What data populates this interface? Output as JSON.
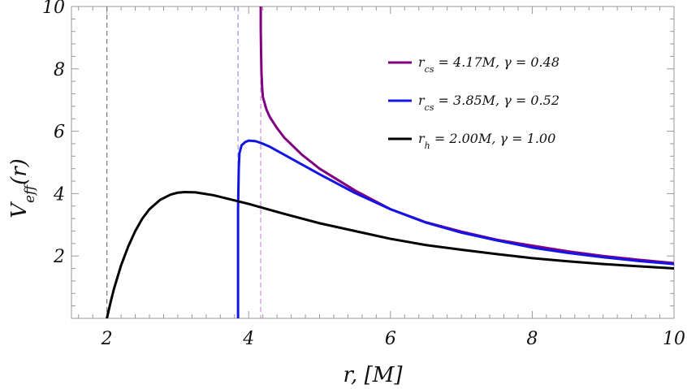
{
  "chart_data": {
    "type": "line",
    "xlabel": "r, [M]",
    "ylabel": "V_eff(r)",
    "xlim": [
      1.5,
      10
    ],
    "ylim": [
      0,
      10
    ],
    "x_ticks": [
      2,
      4,
      6,
      8,
      10
    ],
    "y_ticks": [
      2,
      4,
      6,
      8,
      10
    ],
    "grid": false,
    "legend_position": "top-right",
    "vertical_lines": [
      {
        "x": 2.0,
        "color": "#777777"
      },
      {
        "x": 3.85,
        "color": "#9a8fe0"
      },
      {
        "x": 4.17,
        "color": "#c890d8"
      }
    ],
    "series": [
      {
        "name": "r_cs = 4.17M, γ = 0.48",
        "legend_main": "r",
        "legend_sub": "cs",
        "legend_rest": " = 4.17M, γ = 0.48",
        "color": "#800080",
        "points": [
          [
            4.17,
            10.0
          ],
          [
            4.17,
            9.3
          ],
          [
            4.175,
            8.5
          ],
          [
            4.18,
            7.9
          ],
          [
            4.19,
            7.4
          ],
          [
            4.2,
            7.1
          ],
          [
            4.25,
            6.7
          ],
          [
            4.3,
            6.45
          ],
          [
            4.4,
            6.1
          ],
          [
            4.5,
            5.8
          ],
          [
            4.75,
            5.25
          ],
          [
            5.0,
            4.8
          ],
          [
            5.5,
            4.1
          ],
          [
            6.0,
            3.5
          ],
          [
            6.5,
            3.08
          ],
          [
            7.0,
            2.78
          ],
          [
            7.5,
            2.52
          ],
          [
            8.0,
            2.33
          ],
          [
            8.5,
            2.15
          ],
          [
            9.0,
            2.0
          ],
          [
            9.5,
            1.88
          ],
          [
            10.0,
            1.77
          ]
        ]
      },
      {
        "name": "r_cs = 3.85M, γ = 0.52",
        "legend_main": "r",
        "legend_sub": "cs",
        "legend_rest": " = 3.85M, γ = 0.52",
        "color": "#1414e6",
        "points": [
          [
            3.85,
            0.0
          ],
          [
            3.85,
            1.5
          ],
          [
            3.85,
            3.5
          ],
          [
            3.86,
            4.8
          ],
          [
            3.87,
            5.3
          ],
          [
            3.9,
            5.55
          ],
          [
            3.95,
            5.65
          ],
          [
            4.0,
            5.7
          ],
          [
            4.1,
            5.68
          ],
          [
            4.2,
            5.6
          ],
          [
            4.3,
            5.5
          ],
          [
            4.5,
            5.25
          ],
          [
            5.0,
            4.62
          ],
          [
            5.5,
            4.02
          ],
          [
            6.0,
            3.5
          ],
          [
            6.5,
            3.07
          ],
          [
            7.0,
            2.75
          ],
          [
            7.5,
            2.5
          ],
          [
            8.0,
            2.27
          ],
          [
            8.5,
            2.1
          ],
          [
            9.0,
            1.96
          ],
          [
            9.5,
            1.84
          ],
          [
            10.0,
            1.74
          ]
        ]
      },
      {
        "name": "r_h = 2.00M, γ = 1.00",
        "legend_main": "r",
        "legend_sub": "h",
        "legend_rest": " = 2.00M, γ = 1.00",
        "color": "#000000",
        "points": [
          [
            2.0,
            0.0
          ],
          [
            2.05,
            0.5
          ],
          [
            2.1,
            0.95
          ],
          [
            2.2,
            1.7
          ],
          [
            2.3,
            2.3
          ],
          [
            2.4,
            2.8
          ],
          [
            2.5,
            3.2
          ],
          [
            2.6,
            3.5
          ],
          [
            2.75,
            3.8
          ],
          [
            2.9,
            3.97
          ],
          [
            3.0,
            4.03
          ],
          [
            3.1,
            4.05
          ],
          [
            3.25,
            4.04
          ],
          [
            3.5,
            3.95
          ],
          [
            4.0,
            3.67
          ],
          [
            4.5,
            3.35
          ],
          [
            5.0,
            3.05
          ],
          [
            5.5,
            2.8
          ],
          [
            6.0,
            2.55
          ],
          [
            6.5,
            2.35
          ],
          [
            7.0,
            2.2
          ],
          [
            7.5,
            2.06
          ],
          [
            8.0,
            1.93
          ],
          [
            8.5,
            1.83
          ],
          [
            9.0,
            1.74
          ],
          [
            9.5,
            1.67
          ],
          [
            10.0,
            1.6
          ]
        ]
      }
    ]
  }
}
